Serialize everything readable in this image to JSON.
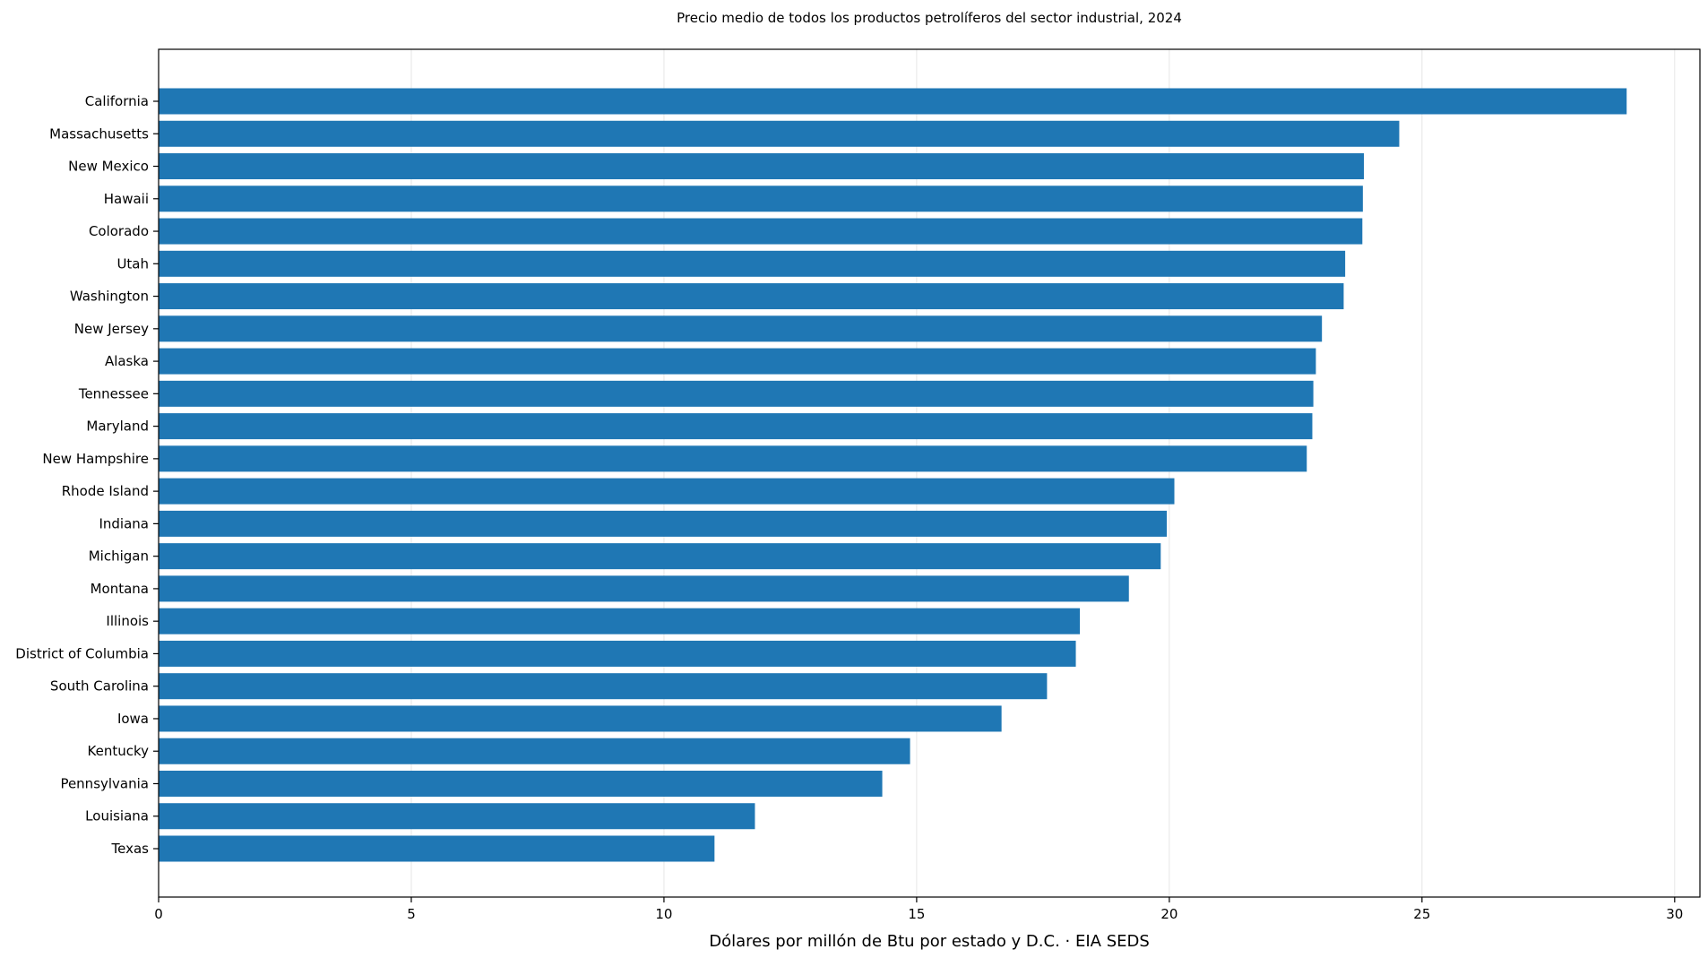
{
  "chart_data": {
    "type": "bar",
    "orientation": "horizontal",
    "title": "Precio medio de todos los productos petrolíferos del sector industrial, 2024",
    "xlabel": "Dólares por millón de Btu por estado y D.C. · EIA SEDS",
    "ylabel": "",
    "xlim": [
      0,
      30.5
    ],
    "xticks": [
      0,
      5,
      10,
      15,
      20,
      25,
      30
    ],
    "grid": "vertical",
    "bar_color": "#1f77b4",
    "categories": [
      "California",
      "Massachusetts",
      "New Mexico",
      "Hawaii",
      "Colorado",
      "Utah",
      "Washington",
      "New Jersey",
      "Alaska",
      "Tennessee",
      "Maryland",
      "New Hampshire",
      "Rhode Island",
      "Indiana",
      "Michigan",
      "Montana",
      "Illinois",
      "District of Columbia",
      "South Carolina",
      "Iowa",
      "Kentucky",
      "Pennsylvania",
      "Louisiana",
      "Texas"
    ],
    "values": [
      29.05,
      24.55,
      23.85,
      23.83,
      23.82,
      23.48,
      23.45,
      23.02,
      22.9,
      22.85,
      22.83,
      22.72,
      20.1,
      19.95,
      19.83,
      19.2,
      18.23,
      18.15,
      17.58,
      16.68,
      14.87,
      14.32,
      11.8,
      11.0
    ]
  }
}
